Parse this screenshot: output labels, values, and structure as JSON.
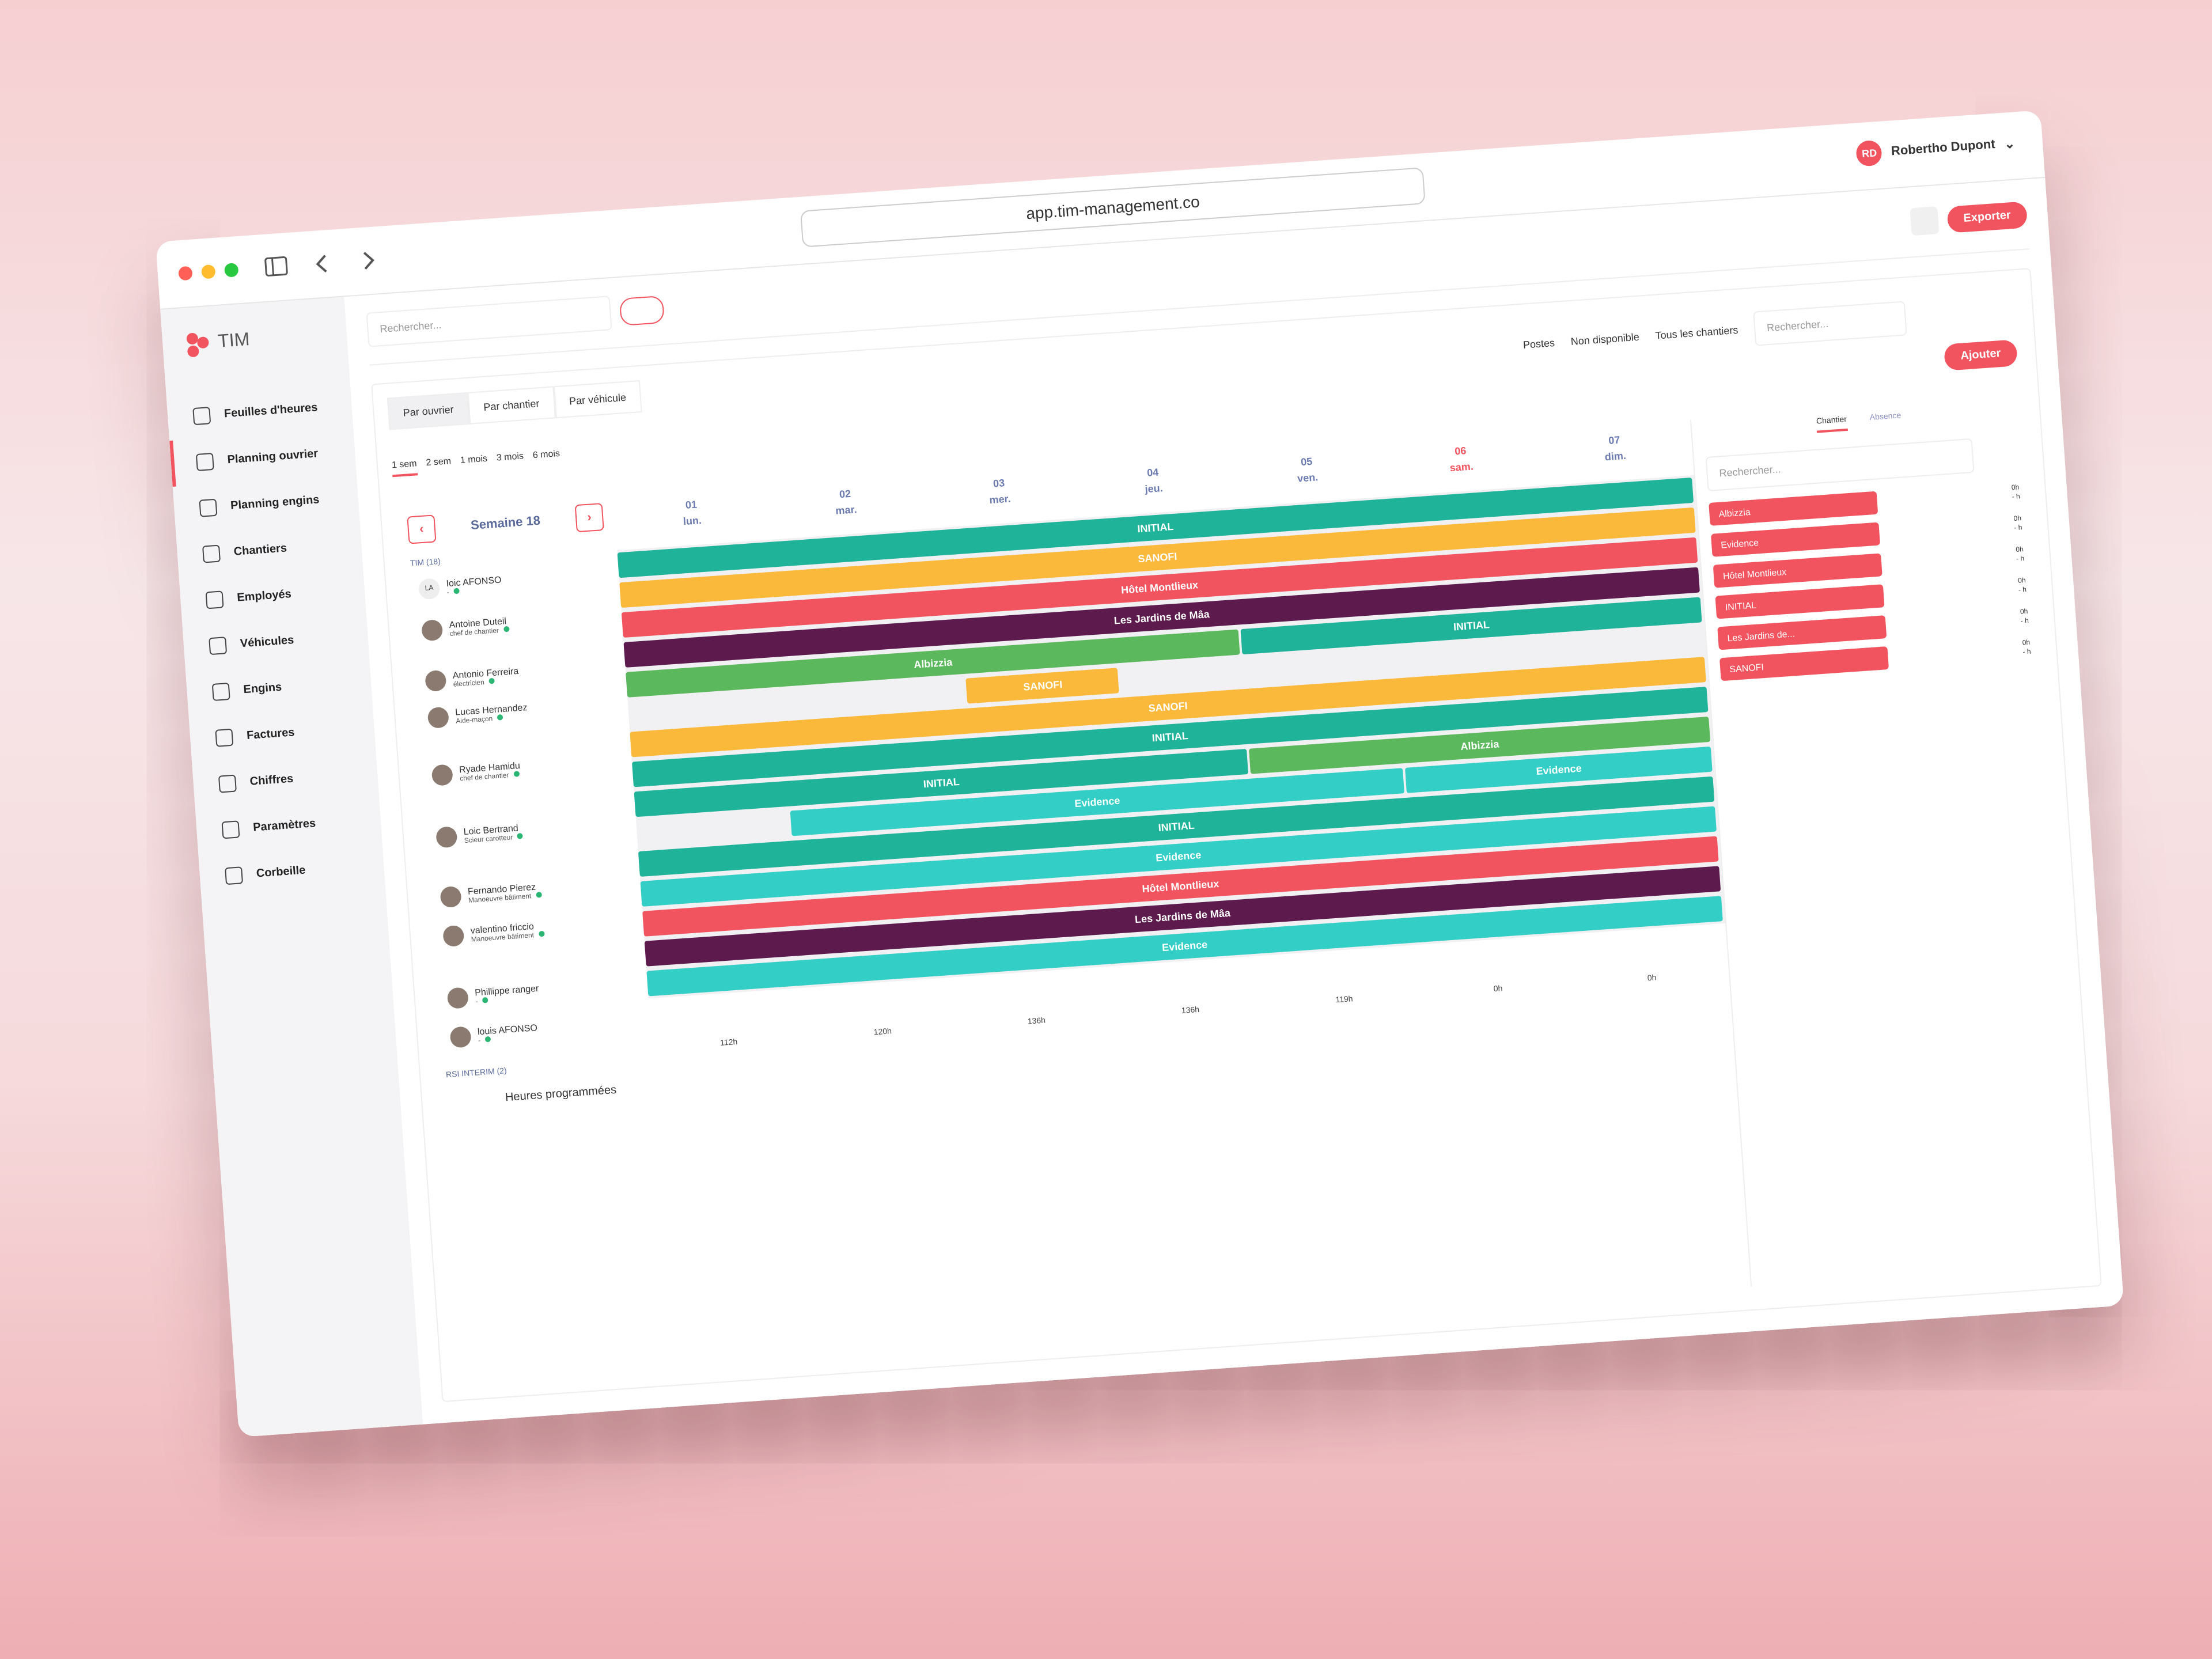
{
  "browser": {
    "url": "app.tim-management.co",
    "user_initials": "RD",
    "user_name": "Robertho Dupont"
  },
  "app": {
    "logo": "TIM",
    "search_placeholder": "Rechercher...",
    "export": "Exporter",
    "add": "Ajouter"
  },
  "sidebar": [
    "Feuilles d'heures",
    "Planning ouvrier",
    "Planning engins",
    "Chantiers",
    "Employés",
    "Véhicules",
    "Engins",
    "Factures",
    "Chiffres",
    "Paramètres",
    "Corbeille"
  ],
  "view_tabs": [
    "Par ouvrier",
    "Par chantier",
    "Par véhicule"
  ],
  "ranges": [
    "1 sem",
    "2 sem",
    "1 mois",
    "3 mois",
    "6 mois"
  ],
  "filters": [
    "Postes",
    "Non disponible",
    "Tous les chantiers"
  ],
  "filter_search": "Rechercher...",
  "week": "Semaine 18",
  "days": [
    {
      "num": "01",
      "name": "lun."
    },
    {
      "num": "02",
      "name": "mar."
    },
    {
      "num": "03",
      "name": "mer."
    },
    {
      "num": "04",
      "name": "jeu."
    },
    {
      "num": "05",
      "name": "ven."
    },
    {
      "num": "06",
      "name": "sam."
    },
    {
      "num": "07",
      "name": "dim."
    }
  ],
  "group": "TIM (18)",
  "employees": [
    {
      "avatar": "LA",
      "name": "Ioic AFONSO",
      "role": "-"
    },
    {
      "name": "Antoine Duteil",
      "role": "chef de chantier"
    },
    {
      "name": "Antonio Ferreira",
      "role": "électricien"
    },
    {
      "name": "Lucas Hernandez",
      "role": "Aide-maçon"
    },
    {
      "name": "Ryade Hamidu",
      "role": "chef de chantier"
    },
    {
      "name": "Loic Bertrand",
      "role": "Scieur carotteur"
    },
    {
      "name": "Fernando Pierez",
      "role": "Manoeuvre bâtiment"
    },
    {
      "name": "valentino friccio",
      "role": "Manoeuvre bâtiment"
    },
    {
      "name": "Phillippe ranger",
      "role": "-"
    },
    {
      "name": "louis AFONSO",
      "role": "-"
    }
  ],
  "group2": "RSI INTERIM (2)",
  "rows": [
    {
      "bars": [
        {
          "label": "INITIAL",
          "color": "#1fb39a",
          "start": 0,
          "end": 7
        }
      ]
    },
    {
      "bars": [
        {
          "label": "SANOFI",
          "color": "#fbb93b",
          "start": 0,
          "end": 7
        }
      ]
    },
    {
      "bars": [
        {
          "label": "Hôtel Montlieux",
          "color": "#f2545f",
          "start": 0,
          "end": 7
        }
      ]
    },
    {
      "bars": [
        {
          "label": "Les Jardins de Mâa",
          "color": "#5c1a4d",
          "start": 0,
          "end": 7
        }
      ]
    },
    {
      "bars": [
        {
          "label": "Albizzia",
          "color": "#5cb85c",
          "start": 0,
          "end": 4
        },
        {
          "label": "INITIAL",
          "color": "#1fb39a",
          "start": 4,
          "end": 7
        }
      ]
    },
    {
      "bars": [
        {
          "label": "SANOFI",
          "color": "#fbb93b",
          "start": 2.2,
          "end": 3.2
        }
      ]
    },
    {
      "bars": [
        {
          "label": "SANOFI",
          "color": "#fbb93b",
          "start": 0,
          "end": 7
        }
      ]
    },
    {
      "bars": [
        {
          "label": "INITIAL",
          "color": "#1fb39a",
          "start": 0,
          "end": 7
        }
      ]
    },
    {
      "bars": [
        {
          "label": "INITIAL",
          "color": "#1fb39a",
          "start": 0,
          "end": 4
        },
        {
          "label": "Albizzia",
          "color": "#5cb85c",
          "start": 4,
          "end": 7
        }
      ]
    },
    {
      "bars": [
        {
          "label": "Evidence",
          "color": "#33cfc6",
          "start": 1,
          "end": 5
        },
        {
          "label": "Evidence",
          "color": "#33cfc6",
          "start": 5,
          "end": 7
        }
      ]
    },
    {
      "bars": [
        {
          "label": "INITIAL",
          "color": "#1fb39a",
          "start": 0,
          "end": 7
        }
      ]
    },
    {
      "bars": [
        {
          "label": "Evidence",
          "color": "#33cfc6",
          "start": 0,
          "end": 7
        }
      ]
    },
    {
      "bars": [
        {
          "label": "Hôtel Montlieux",
          "color": "#f2545f",
          "start": 0,
          "end": 7
        }
      ]
    },
    {
      "bars": [
        {
          "label": "Les Jardins de Mâa",
          "color": "#5c1a4d",
          "start": 0,
          "end": 7
        }
      ]
    },
    {
      "bars": [
        {
          "label": "Evidence",
          "color": "#33cfc6",
          "start": 0,
          "end": 7
        }
      ]
    }
  ],
  "footer_label": "Heures programmées",
  "totals": [
    "112h",
    "120h",
    "136h",
    "136h",
    "119h",
    "0h",
    "0h"
  ],
  "panel_tabs": [
    "Chantier",
    "Absence"
  ],
  "panel_search": "Rechercher...",
  "chantiers": [
    {
      "name": "Albizzia",
      "hours": "0h",
      "planned": "- h"
    },
    {
      "name": "Evidence",
      "hours": "0h",
      "planned": "- h"
    },
    {
      "name": "Hôtel Montlieux",
      "hours": "0h",
      "planned": "- h"
    },
    {
      "name": "INITIAL",
      "hours": "0h",
      "planned": "- h"
    },
    {
      "name": "Les Jardins de...",
      "hours": "0h",
      "planned": "- h"
    },
    {
      "name": "SANOFI",
      "hours": "0h",
      "planned": "- h"
    }
  ]
}
